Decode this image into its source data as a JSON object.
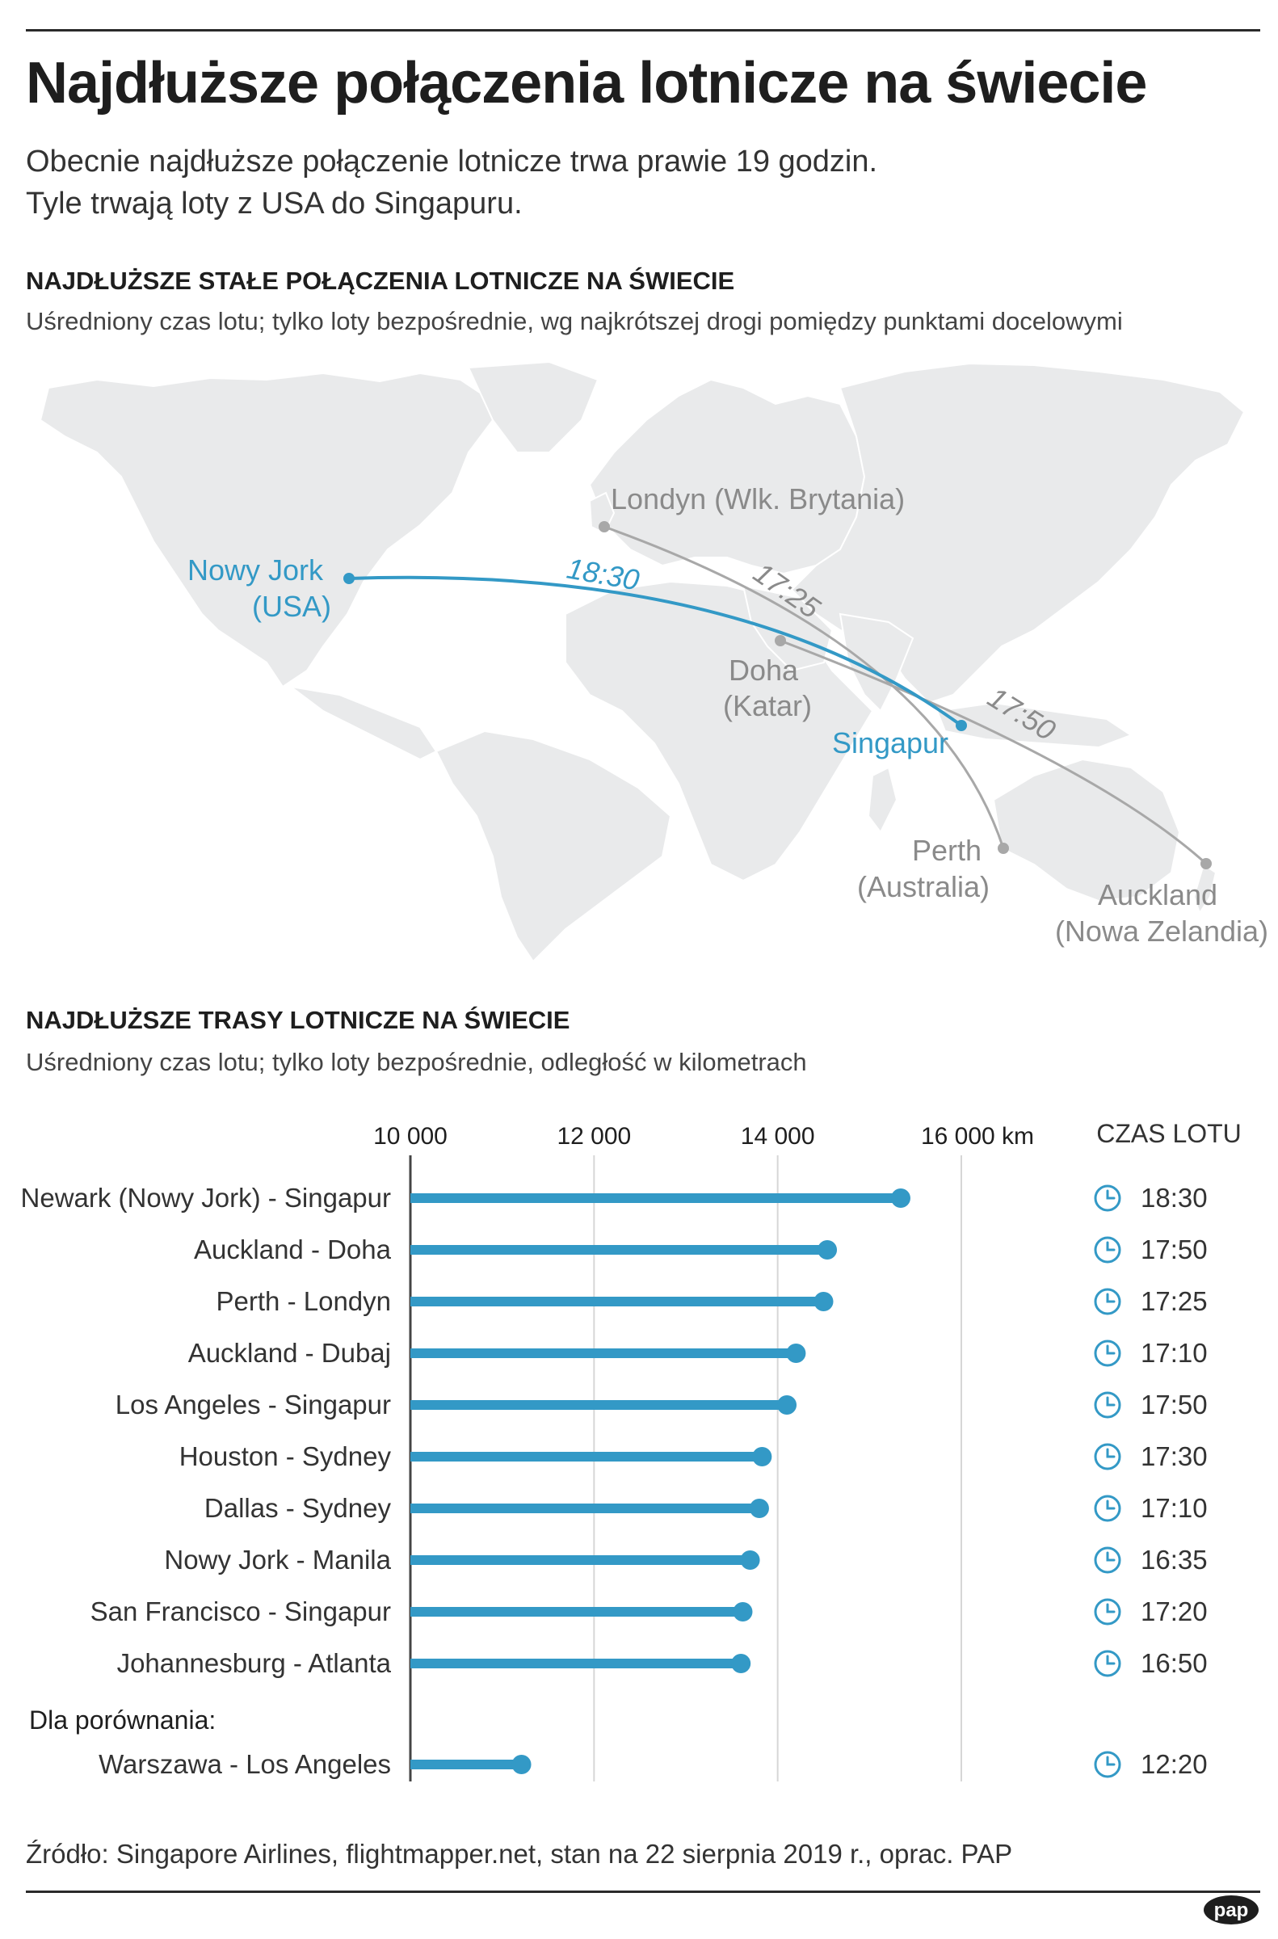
{
  "title": "Najdłuższe połączenia lotnicze na świecie",
  "subtitle": {
    "line1": "Obecnie najdłuższe połączenie lotnicze trwa prawie 19 godzin.",
    "line2": "Tyle trwają loty z USA do Singapuru."
  },
  "map_section": {
    "heading": "NAJDŁUŻSZE STAŁE POŁĄCZENIA LOTNICZE NA ŚWIECIE",
    "subheading": "Uśredniony czas lotu; tylko loty bezpośrednie, wg najkrótszej drogi pomiędzy punktami docelowymi",
    "cities": {
      "nyc": [
        "Nowy Jork",
        "(USA)"
      ],
      "london": [
        "Londyn (Wlk. Brytania)"
      ],
      "doha": [
        "Doha",
        "(Katar)"
      ],
      "singapore": [
        "Singapur"
      ],
      "perth": [
        "Perth",
        "(Australia)"
      ],
      "auckland": [
        "Auckland",
        "(Nowa Zelandia)"
      ]
    },
    "routes": [
      {
        "from": "Nowy Jork",
        "to": "Singapur",
        "time": "18:30",
        "highlight": true
      },
      {
        "from": "Londyn",
        "to": "Perth",
        "time": "17:25",
        "highlight": false
      },
      {
        "from": "Doha",
        "to": "Auckland",
        "time": "17:50",
        "highlight": false
      }
    ]
  },
  "chart_section": {
    "heading": "NAJDŁUŻSZE TRASY LOTNICZE NA ŚWIECIE",
    "subheading": "Uśredniony czas lotu; tylko loty bezpośrednie, odległość w kilometrach",
    "time_header": "CZAS LOTU",
    "comparison_label": "Dla porównania:"
  },
  "chart_data": {
    "type": "bar",
    "x_ticks": [
      "10 000",
      "12 000",
      "14 000",
      "16 000 km"
    ],
    "xlim": [
      10000,
      16000
    ],
    "categories": [
      "Newark (Nowy Jork) - Singapur",
      "Auckland - Doha",
      "Perth - Londyn",
      "Auckland - Dubaj",
      "Los Angeles - Singapur",
      "Houston - Sydney",
      "Dallas - Sydney",
      "Nowy Jork - Manila",
      "San Francisco - Singapur",
      "Johannesburg - Atlanta"
    ],
    "values": [
      15340,
      14540,
      14500,
      14200,
      14100,
      13830,
      13800,
      13700,
      13620,
      13600
    ],
    "times": [
      "18:30",
      "17:50",
      "17:25",
      "17:10",
      "17:50",
      "17:30",
      "17:10",
      "16:35",
      "17:20",
      "16:50"
    ],
    "comparison": {
      "category": "Warszawa - Los Angeles",
      "value": 11210,
      "time": "12:20"
    }
  },
  "source": "Źródło: Singapore Airlines, flightmapper.net, stan na 22 sierpnia 2019 r., oprac. PAP",
  "logo": "pap",
  "colors": {
    "accent": "#3399c6",
    "grey_route": "#a8a8a8",
    "land": "#e9eaeb",
    "axis": "#444444",
    "text": "#333333"
  }
}
